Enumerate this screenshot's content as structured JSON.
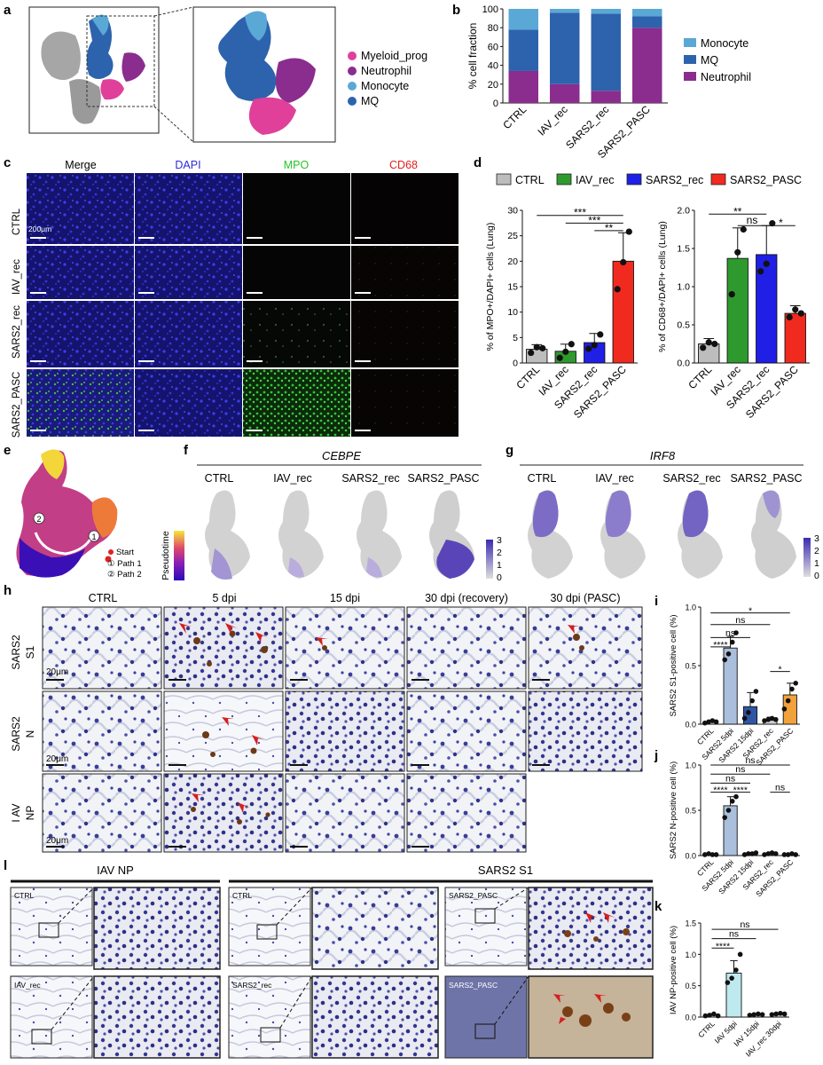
{
  "panels": {
    "a": {
      "letter": "a",
      "legend": [
        {
          "label": "Myeloid_prog",
          "color": "#e0409a"
        },
        {
          "label": "Neutrophil",
          "color": "#8a2d8e"
        },
        {
          "label": "Monocyte",
          "color": "#5aa8d6"
        },
        {
          "label": "MQ",
          "color": "#2d63ad"
        }
      ]
    },
    "b": {
      "letter": "b"
    },
    "c": {
      "letter": "c",
      "columns": [
        {
          "label": "Merge",
          "color": "#111111"
        },
        {
          "label": "DAPI",
          "color": "#2b2bd6"
        },
        {
          "label": "MPO",
          "color": "#29c229"
        },
        {
          "label": "CD68",
          "color": "#e02020"
        }
      ],
      "rows": [
        "CTRL",
        "IAV_rec",
        "SARS2_rec",
        "SARS2_PASC"
      ],
      "scale": "200μm"
    },
    "d": {
      "letter": "d",
      "legend": [
        {
          "label": "CTRL",
          "color": "#bdbdbd"
        },
        {
          "label": "IAV_rec",
          "color": "#2e9a2e"
        },
        {
          "label": "SARS2_rec",
          "color": "#1f1fe6"
        },
        {
          "label": "SARS2_PASC",
          "color": "#f02a1e"
        }
      ]
    },
    "e": {
      "letter": "e",
      "axis": "Pseudotime",
      "markers": [
        "2",
        "1"
      ],
      "legend": [
        "Start",
        "① Path 1",
        "② Path 2"
      ]
    },
    "f": {
      "letter": "f",
      "gene": "CEBPE",
      "conditions": [
        "CTRL",
        "IAV_rec",
        "SARS2_rec",
        "SARS2_PASC"
      ],
      "scale": [
        "3",
        "2",
        "1",
        "0"
      ]
    },
    "g": {
      "letter": "g",
      "gene": "IRF8",
      "conditions": [
        "CTRL",
        "IAV_rec",
        "SARS2_rec",
        "SARS2_PASC"
      ],
      "scale": [
        "3",
        "2",
        "1",
        "0"
      ]
    },
    "h": {
      "letter": "h",
      "columns": [
        "CTRL",
        "5 dpi",
        "15 dpi",
        "30 dpi (recovery)",
        "30 dpi (PASC)"
      ],
      "row_labels": [
        [
          "SARS2",
          "S1"
        ],
        [
          "SARS2",
          "N"
        ],
        [
          "I AV",
          "NP"
        ]
      ],
      "scales": [
        "20μm",
        "20μm",
        "20μm"
      ]
    },
    "i": {
      "letter": "i"
    },
    "j": {
      "letter": "j"
    },
    "k": {
      "letter": "k"
    },
    "l": {
      "letter": "l",
      "headers": [
        "IAV  NP",
        "SARS2  S1"
      ],
      "labels": [
        "CTRL",
        "IAV_rec",
        "CTRL",
        "SARS2_rec",
        "SARS2_PASC",
        "SARS2_PASC"
      ]
    }
  },
  "chart_data": [
    {
      "id": "b",
      "type": "bar",
      "stacked": true,
      "ylabel": "% cell fraction",
      "ylim": [
        0,
        100
      ],
      "yticks": [
        0,
        20,
        40,
        60,
        80,
        100
      ],
      "categories": [
        "CTRL",
        "IAV_rec",
        "SARS2_rec",
        "SARS2_PASC"
      ],
      "series": [
        {
          "name": "Neutrophil",
          "color": "#8a2d8e",
          "values": [
            34,
            20,
            13,
            80
          ]
        },
        {
          "name": "MQ",
          "color": "#2d63ad",
          "values": [
            44,
            76,
            82,
            12
          ]
        },
        {
          "name": "Monocyte",
          "color": "#5aa8d6",
          "values": [
            22,
            4,
            5,
            8
          ]
        }
      ]
    },
    {
      "id": "d-left",
      "type": "bar",
      "ylabel": "% of MPO+/DAPI+ cells (Lung)",
      "ylim": [
        0,
        30
      ],
      "yticks": [
        0,
        5,
        10,
        15,
        20,
        25,
        30
      ],
      "categories": [
        "CTRL",
        "IAV_rec",
        "SARS2_rec",
        "SARS2_PASC"
      ],
      "values": [
        2.7,
        2.3,
        4.0,
        20.0
      ],
      "errors": [
        0.9,
        1.4,
        1.8,
        5.6
      ],
      "colors": [
        "#bdbdbd",
        "#2e9a2e",
        "#1f1fe6",
        "#f02a1e"
      ],
      "points": [
        [
          2.0,
          3.1,
          2.9
        ],
        [
          1.0,
          2.2,
          3.7
        ],
        [
          2.8,
          3.5,
          5.6
        ],
        [
          14.5,
          19.8,
          25.8
        ]
      ],
      "significance": [
        {
          "from": 0,
          "to": 3,
          "label": "***",
          "level": 29.0
        },
        {
          "from": 1,
          "to": 3,
          "label": "***",
          "level": 27.5
        },
        {
          "from": 2,
          "to": 3,
          "label": "**",
          "level": 26.0
        }
      ]
    },
    {
      "id": "d-right",
      "type": "bar",
      "ylabel": "% of CD68+/DAPI+ cells (Lung)",
      "ylim": [
        0,
        2.0
      ],
      "yticks": [
        0.0,
        0.5,
        1.0,
        1.5,
        2.0
      ],
      "categories": [
        "CTRL",
        "IAV_rec",
        "SARS2_rec",
        "SARS2_PASC"
      ],
      "values": [
        0.25,
        1.37,
        1.42,
        0.65
      ],
      "errors": [
        0.07,
        0.4,
        0.38,
        0.1
      ],
      "colors": [
        "#bdbdbd",
        "#2e9a2e",
        "#1f1fe6",
        "#f02a1e"
      ],
      "points": [
        [
          0.2,
          0.27,
          0.25
        ],
        [
          0.9,
          1.45,
          1.75
        ],
        [
          1.2,
          1.3,
          1.83
        ],
        [
          0.6,
          0.7,
          0.65
        ]
      ],
      "significance": [
        {
          "from": 0,
          "to": 2,
          "label": "**",
          "level": 1.95
        },
        {
          "from": 1,
          "to": 2,
          "label": "ns",
          "level": 1.8
        },
        {
          "from": 2,
          "to": 3,
          "label": "*",
          "level": 1.8
        }
      ]
    },
    {
      "id": "i",
      "type": "bar",
      "ylabel": "SARS2 S1-positive cell (%)",
      "ylim": [
        0,
        1.0
      ],
      "yticks": [
        0.0,
        0.5,
        1.0
      ],
      "categories": [
        "CTRL",
        "SARS2 5dpi",
        "SARS2 15dpi",
        "SARS2_rec",
        "SARS2_PASC"
      ],
      "values": [
        0.02,
        0.65,
        0.15,
        0.04,
        0.25
      ],
      "errors": [
        0.01,
        0.1,
        0.12,
        0.02,
        0.1
      ],
      "colors": [
        "#e6e6e6",
        "#a9bfdc",
        "#2f55a4",
        "#cfcfcf",
        "#f2a23a"
      ],
      "points": [
        [
          0.01,
          0.02,
          0.03,
          0.02
        ],
        [
          0.55,
          0.6,
          0.7,
          0.78
        ],
        [
          0.05,
          0.1,
          0.2,
          0.28
        ],
        [
          0.03,
          0.04,
          0.05,
          0.04
        ],
        [
          0.13,
          0.2,
          0.3,
          0.35
        ]
      ],
      "significance": [
        {
          "from": 0,
          "to": 4,
          "label": "*",
          "level": 0.95
        },
        {
          "from": 0,
          "to": 3,
          "label": "ns",
          "level": 0.85
        },
        {
          "from": 0,
          "to": 2,
          "label": "ns",
          "level": 0.74
        },
        {
          "from": 0,
          "to": 1,
          "label": "****",
          "level": 0.66
        },
        {
          "from": 3,
          "to": 4,
          "label": "*",
          "level": 0.45
        }
      ]
    },
    {
      "id": "j",
      "type": "bar",
      "ylabel": "SARS2 N-positive cell (%)",
      "ylim": [
        0,
        1.0
      ],
      "yticks": [
        0.0,
        0.5,
        1.0
      ],
      "categories": [
        "CTRL",
        "SARS2 5dpi",
        "SARS2 15dpi",
        "SARS2_rec",
        "SARS2_PASC"
      ],
      "values": [
        0.01,
        0.55,
        0.02,
        0.02,
        0.01
      ],
      "errors": [
        0.01,
        0.1,
        0.01,
        0.01,
        0.01
      ],
      "colors": [
        "#e6e6e6",
        "#a9bfdc",
        "#2f55a4",
        "#cfcfcf",
        "#f2a23a"
      ],
      "points": [
        [
          0.01,
          0.02,
          0.01,
          0.01
        ],
        [
          0.42,
          0.5,
          0.6,
          0.65
        ],
        [
          0.01,
          0.02,
          0.02,
          0.03
        ],
        [
          0.01,
          0.02,
          0.03,
          0.02
        ],
        [
          0.01,
          0.01,
          0.02,
          0.01
        ]
      ],
      "significance": [
        {
          "from": 0,
          "to": 4,
          "label": "ns",
          "level": 1.0
        },
        {
          "from": 0,
          "to": 3,
          "label": "ns",
          "level": 0.9
        },
        {
          "from": 0,
          "to": 2,
          "label": "ns",
          "level": 0.8
        },
        {
          "from": 0,
          "to": 1,
          "label": "****",
          "level": 0.7
        },
        {
          "from": 1,
          "to": 2,
          "label": "****",
          "level": 0.7
        },
        {
          "from": 3,
          "to": 4,
          "label": "ns",
          "level": 0.7
        }
      ]
    },
    {
      "id": "k",
      "type": "bar",
      "ylabel": "IAV NP-positive cell (%)",
      "ylim": [
        0,
        1.5
      ],
      "yticks": [
        0.0,
        0.5,
        1.0,
        1.5
      ],
      "categories": [
        "CTRL",
        "IAV 5dpi",
        "IAV 15dpi",
        "IAV_rec 30dpi"
      ],
      "values": [
        0.03,
        0.7,
        0.04,
        0.05
      ],
      "errors": [
        0.02,
        0.2,
        0.01,
        0.01
      ],
      "colors": [
        "#f0f0f0",
        "#bde9ef",
        "#cfcfcf",
        "#cfcfcf"
      ],
      "points": [
        [
          0.02,
          0.03,
          0.05,
          0.02
        ],
        [
          0.55,
          0.62,
          0.75,
          1.0
        ],
        [
          0.03,
          0.04,
          0.05,
          0.04
        ],
        [
          0.04,
          0.05,
          0.06,
          0.05
        ]
      ],
      "significance": [
        {
          "from": 0,
          "to": 3,
          "label": "ns",
          "level": 1.4
        },
        {
          "from": 0,
          "to": 2,
          "label": "ns",
          "level": 1.25
        },
        {
          "from": 0,
          "to": 1,
          "label": "****",
          "level": 1.1
        }
      ]
    }
  ]
}
